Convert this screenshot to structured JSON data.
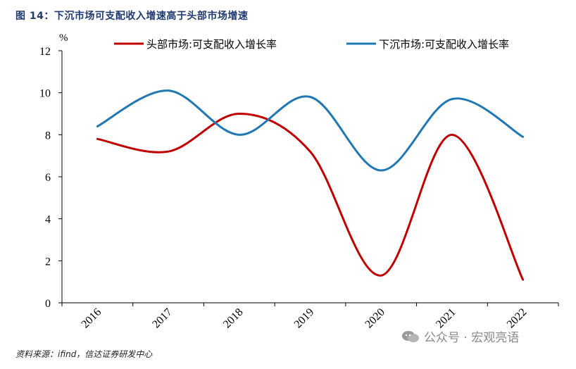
{
  "figure": {
    "title": "图 14：下沉市场可支配收入增速高于头部市场增速",
    "source": "资料来源：ifind，信达证券研发中心",
    "watermark": "公众号 · 宏观亮语"
  },
  "chart_data": {
    "type": "line",
    "title": "下沉市场可支配收入增速高于头部市场增速",
    "unit_label": "%",
    "x": [
      "2016",
      "2017",
      "2018",
      "2019",
      "2020",
      "2021",
      "2022"
    ],
    "ylim": [
      0,
      12
    ],
    "yticks": [
      0,
      2,
      4,
      6,
      8,
      10,
      12
    ],
    "grid": false,
    "legend_position": "top",
    "series": [
      {
        "name": "头部市场:可支配收入增长率",
        "color": "#c00000",
        "values": [
          7.8,
          7.2,
          9.0,
          7.2,
          1.3,
          8.0,
          1.1
        ]
      },
      {
        "name": "下沉市场:可支配收入增长率",
        "color": "#1f78b4",
        "values": [
          8.4,
          10.1,
          8.0,
          9.8,
          6.3,
          9.7,
          7.9
        ]
      }
    ]
  }
}
